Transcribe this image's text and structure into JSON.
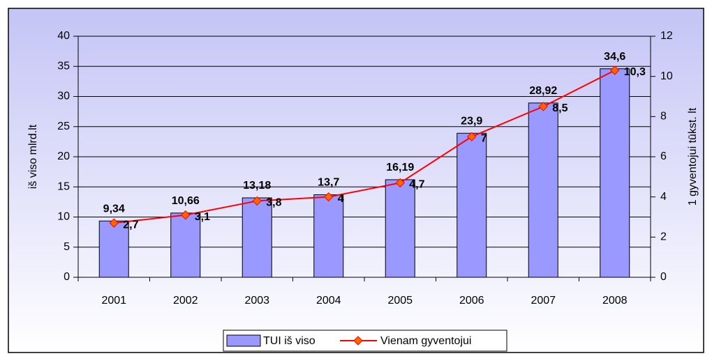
{
  "chart_data": {
    "type": "bar",
    "categories": [
      "2001",
      "2002",
      "2003",
      "2004",
      "2005",
      "2006",
      "2007",
      "2008"
    ],
    "series": [
      {
        "name": "TUI iš viso",
        "type": "bar",
        "color": "#9999ff",
        "values": [
          9.34,
          10.66,
          13.18,
          13.7,
          16.19,
          23.9,
          28.92,
          34.6
        ],
        "value_labels": [
          "9,34",
          "10,66",
          "13,18",
          "13,7",
          "16,19",
          "23,9",
          "28,92",
          "34,6"
        ]
      },
      {
        "name": "Vienam gyventojui",
        "type": "line",
        "axis": "y2",
        "color": "#ff0000",
        "marker_color": "#ff6600",
        "values": [
          2.7,
          3.1,
          3.8,
          4,
          4.7,
          7,
          8.5,
          10.3
        ],
        "value_labels": [
          "2,7",
          "3,1",
          "3,8",
          "4",
          "4,7",
          "7",
          "8,5",
          "10,3"
        ]
      }
    ],
    "ylabel": "iš viso mlrd.lt",
    "y2label": "1 gyventojui tūkst. lt",
    "ylim": [
      0,
      40
    ],
    "yticks": [
      0,
      5,
      10,
      15,
      20,
      25,
      30,
      35,
      40
    ],
    "y2lim": [
      0,
      12
    ],
    "y2ticks": [
      0,
      2,
      4,
      6,
      8,
      10,
      12
    ],
    "grid": true,
    "legend": "bottom"
  }
}
